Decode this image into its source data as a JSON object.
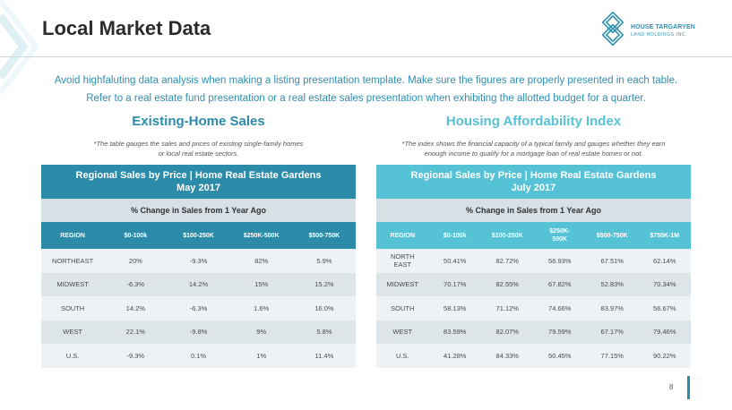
{
  "header": {
    "title": "Local Market Data",
    "logo": {
      "name_line1": "HOUSE TARGARYEN",
      "name_line2": "LAND HOLDINGS INC."
    }
  },
  "intro": {
    "line1": "Avoid highfaluting data analysis when making a listing presentation template. Make sure the figures are properly presented in each table.",
    "line2": "Refer to a real estate fund presentation or a real estate sales presentation when exhibiting the allotted budget for a quarter."
  },
  "colors": {
    "dark_teal": "#2c8ba9",
    "light_teal": "#56c2d6",
    "row_light": "#eef2f4",
    "row_dark": "#dde5e9"
  },
  "left_section": {
    "title": "Existing-Home Sales",
    "note_line1": "*The table gauges the sales and prices of existing single-family homes",
    "note_line2": "or local real estate sectors.",
    "table": {
      "title_line1": "Regional Sales by Price | Home Real Estate Gardens",
      "title_line2": "May 2017",
      "subtitle": "% Change in Sales from 1 Year Ago",
      "columns": [
        "REGION",
        "$0-100k",
        "$100-250K",
        "$250K-500K",
        "$500-750K"
      ],
      "rows": [
        [
          "NORTHEAST",
          "20%",
          "-9.3%",
          "82%",
          "5.9%"
        ],
        [
          "MIDWEST",
          "-6.3%",
          "14.2%",
          "15%",
          "15.2%"
        ],
        [
          "SOUTH",
          "14.2%",
          "-6.3%",
          "1.6%",
          "16.0%"
        ],
        [
          "WEST",
          "22.1%",
          "-9.8%",
          "9%",
          "5.8%"
        ],
        [
          "U.S.",
          "-9.3%",
          "0.1%",
          "1%",
          "11.4%"
        ]
      ]
    }
  },
  "right_section": {
    "title": "Housing Affordability Index",
    "note_line1": "*The index shows the financial capacity of a typical family and gauges whether they earn",
    "note_line2": "enough income to qualify for a mortgage loan of real estate homes or not.",
    "table": {
      "title_line1": "Regional Sales by Price | Home Real Estate Gardens",
      "title_line2": "July 2017",
      "subtitle": "% Change in Sales from 1 Year Ago",
      "columns": [
        "REGION",
        "$0-100k",
        "$100-250K",
        "$250K-\n500K",
        "$500-750K",
        "$750K-1M"
      ],
      "rows": [
        [
          "NORTH\nEAST",
          "50.41%",
          "82.72%",
          "56.93%",
          "67.51%",
          "62.14%"
        ],
        [
          "MIDWEST",
          "70.17%",
          "82.55%",
          "67.82%",
          "52.83%",
          "70.34%"
        ],
        [
          "SOUTH",
          "58.13%",
          "71.12%",
          "74.66%",
          "83.97%",
          "56.67%"
        ],
        [
          "WEST",
          "83.59%",
          "82.07%",
          "79.59%",
          "67.17%",
          "79.46%"
        ],
        [
          "U.S.",
          "41.28%",
          "84.33%",
          "50.45%",
          "77.15%",
          "90.22%"
        ]
      ]
    }
  },
  "footer": {
    "page_number": "8"
  }
}
